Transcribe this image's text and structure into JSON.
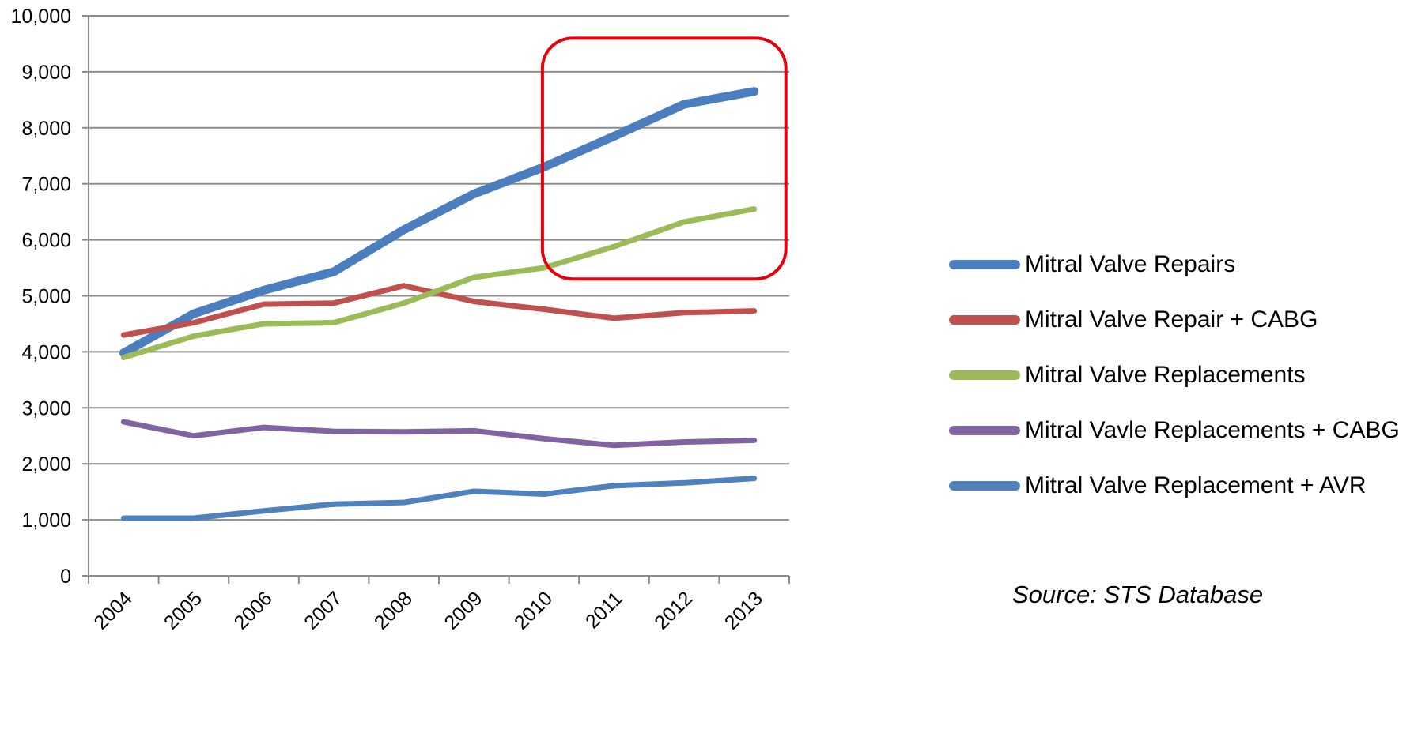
{
  "chart_data": {
    "type": "line",
    "x": [
      "2004",
      "2005",
      "2006",
      "2007",
      "2008",
      "2009",
      "2010",
      "2011",
      "2012",
      "2013"
    ],
    "ylim": [
      0,
      10000
    ],
    "yticks": [
      0,
      1000,
      2000,
      3000,
      4000,
      5000,
      6000,
      7000,
      8000,
      9000,
      10000
    ],
    "ytick_labels": [
      "0",
      "1,000",
      "2,000",
      "3,000",
      "4,000",
      "5,000",
      "6,000",
      "7,000",
      "8,000",
      "9,000",
      "10,000"
    ],
    "grid": true,
    "legend_position": "right",
    "series": [
      {
        "name": "Mitral Valve Repairs",
        "color": "#4a7ebf",
        "width": "thick",
        "values": [
          3980,
          4680,
          5100,
          5430,
          6180,
          6820,
          7300,
          7850,
          8420,
          8650
        ]
      },
      {
        "name": "Mitral Valve Repair + CABG",
        "color": "#c0504d",
        "width": "normal",
        "values": [
          4300,
          4520,
          4850,
          4870,
          5180,
          4900,
          4760,
          4600,
          4700,
          4730
        ]
      },
      {
        "name": "Mitral Valve Replacements",
        "color": "#9bbb59",
        "width": "normal",
        "values": [
          3900,
          4280,
          4500,
          4520,
          4870,
          5330,
          5500,
          5880,
          6320,
          6550
        ]
      },
      {
        "name": "Mitral Vavle Replacements + CABG",
        "color": "#8064a2",
        "width": "normal",
        "values": [
          2750,
          2500,
          2650,
          2580,
          2570,
          2590,
          2450,
          2330,
          2390,
          2420
        ]
      },
      {
        "name": "Mitral Valve Replacement + AVR",
        "color": "#4f81bd",
        "width": "normal",
        "values": [
          1030,
          1030,
          1160,
          1280,
          1310,
          1510,
          1460,
          1610,
          1660,
          1740
        ]
      }
    ],
    "highlight": {
      "color": "#e8000b",
      "x_from": "2010",
      "x_to": "2013",
      "y_from": 5300,
      "y_to": 9600
    }
  },
  "source_text": "Source: STS Database"
}
